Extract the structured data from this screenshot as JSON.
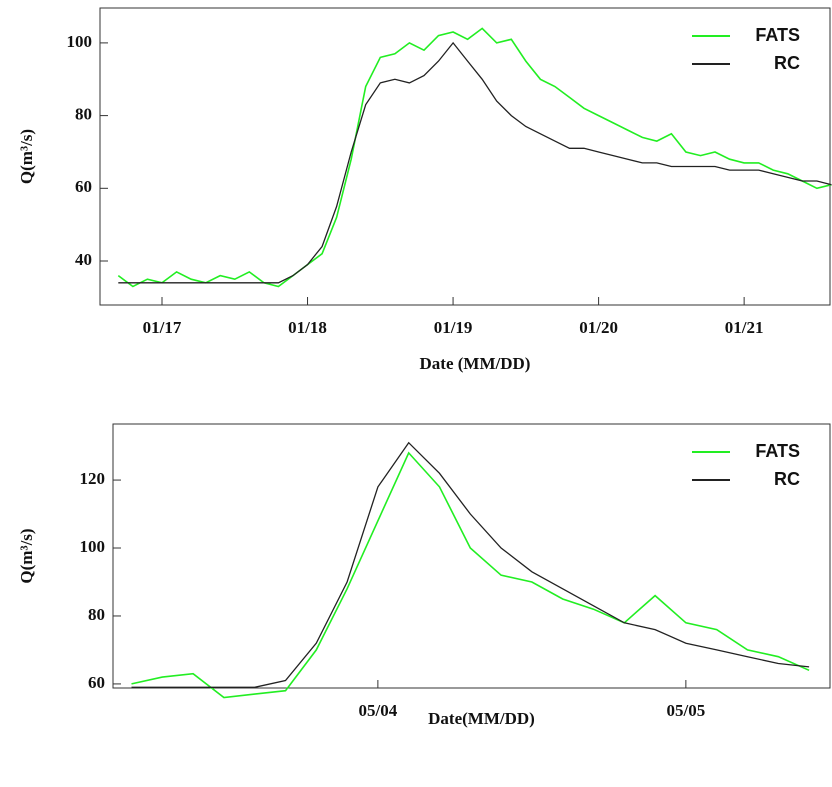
{
  "chart_data": [
    {
      "type": "line",
      "x_label": "Date (MM/DD)",
      "y_label": "Q(m³/s)",
      "x": [
        16.7,
        16.8,
        16.9,
        17.0,
        17.1,
        17.2,
        17.3,
        17.4,
        17.5,
        17.6,
        17.7,
        17.8,
        17.9,
        18.0,
        18.1,
        18.2,
        18.3,
        18.4,
        18.5,
        18.6,
        18.7,
        18.8,
        18.9,
        19.0,
        19.1,
        19.2,
        19.3,
        19.4,
        19.5,
        19.6,
        19.7,
        19.8,
        19.9,
        20.0,
        20.1,
        20.2,
        20.3,
        20.4,
        20.5,
        20.6,
        20.7,
        20.8,
        20.9,
        21.0,
        21.1,
        21.2,
        21.3,
        21.4,
        21.5,
        21.6
      ],
      "xlim": [
        16.574,
        21.59
      ],
      "xticks": [
        {
          "value": 17,
          "label": "01/17"
        },
        {
          "value": 18,
          "label": "01/18"
        },
        {
          "value": 19,
          "label": "01/19"
        },
        {
          "value": 20,
          "label": "01/20"
        },
        {
          "value": 21,
          "label": "01/21"
        }
      ],
      "ylim": [
        27.9,
        109.6
      ],
      "yticks": [
        40,
        60,
        80,
        100
      ],
      "legend": "upper right",
      "series": [
        {
          "name": "FATS",
          "color": "#22ee22",
          "values": [
            36,
            33,
            35,
            34,
            37,
            35,
            34,
            36,
            35,
            37,
            34,
            33,
            36,
            39,
            42,
            52,
            68,
            88,
            96,
            97,
            100,
            98,
            102,
            103,
            101,
            104,
            100,
            101,
            95,
            90,
            88,
            85,
            82,
            80,
            78,
            76,
            74,
            73,
            75,
            70,
            69,
            70,
            68,
            67,
            67,
            65,
            64,
            62,
            60,
            61
          ]
        },
        {
          "name": "RC",
          "color": "#222222",
          "values": [
            34,
            34,
            34,
            34,
            34,
            34,
            34,
            34,
            34,
            34,
            34,
            34,
            36,
            39,
            44,
            55,
            70,
            83,
            89,
            90,
            89,
            91,
            95,
            100,
            95,
            90,
            84,
            80,
            77,
            75,
            73,
            71,
            71,
            70,
            69,
            68,
            67,
            67,
            66,
            66,
            66,
            66,
            65,
            65,
            65,
            64,
            63,
            62,
            62,
            61
          ]
        }
      ]
    },
    {
      "type": "line",
      "x_label": "Date(MM/DD)",
      "y_label": "Q(m³/s)",
      "x": [
        3.2,
        3.3,
        3.4,
        3.5,
        3.6,
        3.7,
        3.8,
        3.9,
        4.0,
        4.1,
        4.2,
        4.3,
        4.4,
        4.5,
        4.6,
        4.7,
        4.8,
        4.9,
        5.0,
        5.1,
        5.2,
        5.3,
        5.4
      ],
      "xlim": [
        3.14,
        5.468
      ],
      "xticks": [
        {
          "value": 4,
          "label": "05/04"
        },
        {
          "value": 5,
          "label": "05/05"
        }
      ],
      "ylim": [
        58.8,
        136.5
      ],
      "yticks": [
        60,
        80,
        100,
        120
      ],
      "legend": "upper right",
      "series": [
        {
          "name": "FATS",
          "color": "#22ee22",
          "values": [
            60,
            62,
            63,
            56,
            57,
            58,
            70,
            88,
            108,
            128,
            118,
            100,
            92,
            90,
            85,
            82,
            78,
            86,
            78,
            76,
            70,
            68,
            64
          ]
        },
        {
          "name": "RC",
          "color": "#222222",
          "values": [
            59,
            59,
            59,
            59,
            59,
            61,
            72,
            90,
            118,
            131,
            122,
            110,
            100,
            93,
            88,
            83,
            78,
            76,
            72,
            70,
            68,
            66,
            65
          ]
        }
      ]
    }
  ]
}
